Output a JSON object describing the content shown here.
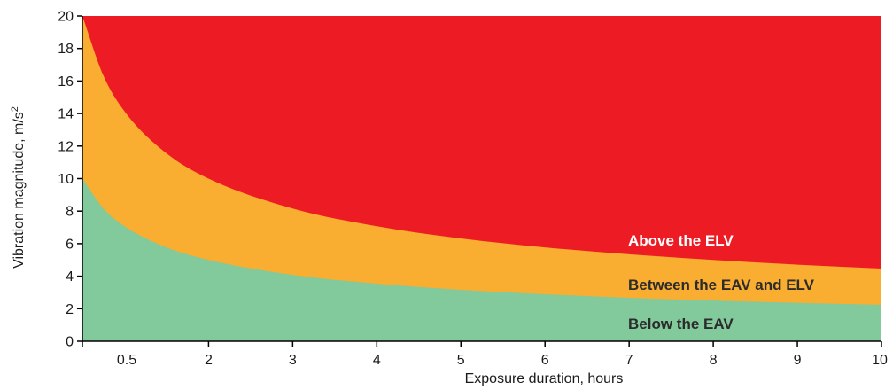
{
  "chart_data": {
    "type": "area",
    "title": "",
    "xlabel": "Exposure duration, hours",
    "ylabel_main": "Vibration magnitude, m/s",
    "ylabel_sup": "2",
    "xlim": [
      0.5,
      10
    ],
    "ylim": [
      0,
      20
    ],
    "x_ticks": [
      {
        "value": 0.5,
        "label": "0.5"
      },
      {
        "value": 2,
        "label": "2"
      },
      {
        "value": 3,
        "label": "3"
      },
      {
        "value": 4,
        "label": "4"
      },
      {
        "value": 5,
        "label": "5"
      },
      {
        "value": 6,
        "label": "6"
      },
      {
        "value": 7,
        "label": "7"
      },
      {
        "value": 8,
        "label": "8"
      },
      {
        "value": 9,
        "label": "9"
      },
      {
        "value": 10,
        "label": "10"
      }
    ],
    "y_ticks": [
      {
        "value": 0,
        "label": "0"
      },
      {
        "value": 2,
        "label": "2"
      },
      {
        "value": 4,
        "label": "4"
      },
      {
        "value": 6,
        "label": "6"
      },
      {
        "value": 8,
        "label": "8"
      },
      {
        "value": 10,
        "label": "10"
      },
      {
        "value": 12,
        "label": "12"
      },
      {
        "value": 14,
        "label": "14"
      },
      {
        "value": 16,
        "label": "16"
      },
      {
        "value": 18,
        "label": "18"
      },
      {
        "value": 20,
        "label": "20"
      }
    ],
    "x": [
      0.5,
      0.75,
      1,
      1.5,
      2,
      3,
      4,
      5,
      6,
      7,
      8,
      9,
      10
    ],
    "series": [
      {
        "name": "Below the EAV",
        "values": [
          10.0,
          8.16,
          7.07,
          5.77,
          5.0,
          4.08,
          3.54,
          3.16,
          2.89,
          2.67,
          2.5,
          2.36,
          2.24
        ]
      },
      {
        "name": "Between the EAV and ELV",
        "values": [
          20.0,
          16.33,
          14.14,
          11.55,
          10.0,
          8.16,
          7.07,
          6.32,
          5.77,
          5.35,
          5.0,
          4.71,
          4.47
        ]
      },
      {
        "name": "Above the ELV",
        "values": [
          20,
          20,
          20,
          20,
          20,
          20,
          20,
          20,
          20,
          20,
          20,
          20,
          20
        ]
      }
    ],
    "zone_labels": {
      "above": "Above the ELV",
      "between": "Between the EAV and ELV",
      "below": "Below the EAV"
    },
    "colors": {
      "above": "#ed1c24",
      "between": "#f9ad31",
      "below": "#82c99b",
      "above_text": "#ffffff",
      "between_text": "#2b2b2b",
      "below_text": "#2b2b2b"
    },
    "grid": false
  }
}
